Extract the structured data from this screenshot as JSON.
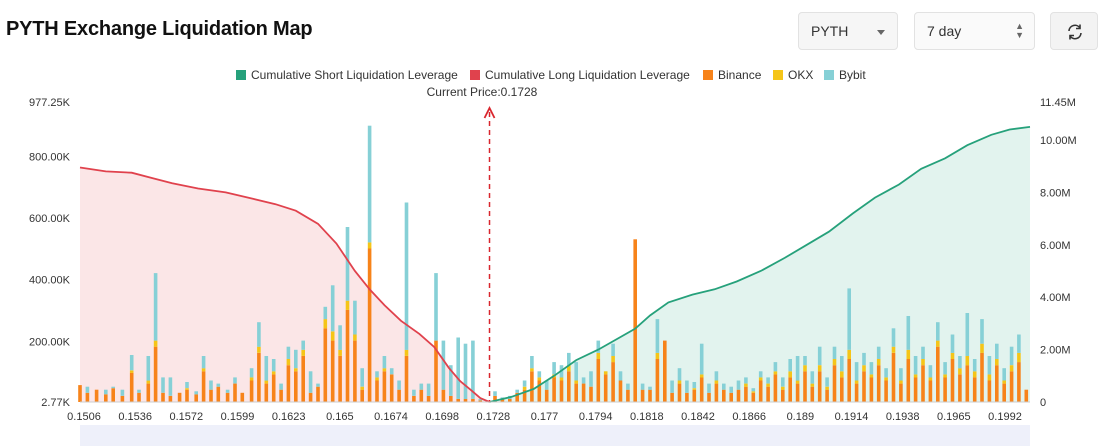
{
  "page": {
    "title": "PYTH Exchange Liquidation Map"
  },
  "controls": {
    "symbol": "PYTH",
    "range": "7 day"
  },
  "chart_data": {
    "type": "bar",
    "current_price_label": "Current Price:0.1728",
    "current_price": 0.1728,
    "legend": [
      {
        "name": "Cumulative Short Liquidation Leverage",
        "color": "#26a17b"
      },
      {
        "name": "Cumulative Long Liquidation Leverage",
        "color": "#e0424d"
      },
      {
        "name": "Binance",
        "color": "#f7831a"
      },
      {
        "name": "OKX",
        "color": "#f5c518"
      },
      {
        "name": "Bybit",
        "color": "#86d0d6"
      }
    ],
    "x_tick_labels": [
      "0.1506",
      "0.1536",
      "0.1572",
      "0.1599",
      "0.1623",
      "0.165",
      "0.1674",
      "0.1698",
      "0.1728",
      "0.177",
      "0.1794",
      "0.1818",
      "0.1842",
      "0.1866",
      "0.189",
      "0.1914",
      "0.1938",
      "0.1965",
      "0.1992"
    ],
    "y_left_ticks": [
      "977.25K",
      "800.00K",
      "600.00K",
      "400.00K",
      "200.00K",
      "2.77K"
    ],
    "y_left_values": [
      977250,
      800000,
      600000,
      400000,
      200000,
      2770
    ],
    "y_right_ticks": [
      "11.45M",
      "10.00M",
      "8.00M",
      "6.00M",
      "4.00M",
      "2.00M",
      "0"
    ],
    "y_right_values": [
      11450000,
      10000000,
      8000000,
      6000000,
      4000000,
      2000000,
      0
    ],
    "ylim_left": [
      2770,
      977250
    ],
    "ylim_right": [
      0,
      11450000
    ],
    "xlim": [
      0.1506,
      0.2021
    ],
    "bars": [
      {
        "x": 0.1506,
        "binance": 55000,
        "okx": 0,
        "bybit": 0
      },
      {
        "x": 0.151,
        "binance": 30000,
        "okx": 0,
        "bybit": 20000
      },
      {
        "x": 0.1515,
        "binance": 40000,
        "okx": 0,
        "bybit": 0
      },
      {
        "x": 0.152,
        "binance": 25000,
        "okx": 0,
        "bybit": 15000
      },
      {
        "x": 0.1524,
        "binance": 45000,
        "okx": 0,
        "bybit": 5000
      },
      {
        "x": 0.1529,
        "binance": 20000,
        "okx": 0,
        "bybit": 20000
      },
      {
        "x": 0.1534,
        "binance": 95000,
        "okx": 8000,
        "bybit": 50000
      },
      {
        "x": 0.1538,
        "binance": 30000,
        "okx": 0,
        "bybit": 10000
      },
      {
        "x": 0.1543,
        "binance": 60000,
        "okx": 10000,
        "bybit": 80000
      },
      {
        "x": 0.1547,
        "binance": 180000,
        "okx": 20000,
        "bybit": 220000
      },
      {
        "x": 0.1551,
        "binance": 30000,
        "okx": 0,
        "bybit": 50000
      },
      {
        "x": 0.1555,
        "binance": 20000,
        "okx": 0,
        "bybit": 60000
      },
      {
        "x": 0.156,
        "binance": 30000,
        "okx": 0,
        "bybit": 0
      },
      {
        "x": 0.1564,
        "binance": 40000,
        "okx": 5000,
        "bybit": 20000
      },
      {
        "x": 0.1569,
        "binance": 25000,
        "okx": 0,
        "bybit": 10000
      },
      {
        "x": 0.1573,
        "binance": 100000,
        "okx": 10000,
        "bybit": 40000
      },
      {
        "x": 0.1577,
        "binance": 40000,
        "okx": 0,
        "bybit": 30000
      },
      {
        "x": 0.1581,
        "binance": 50000,
        "okx": 0,
        "bybit": 10000
      },
      {
        "x": 0.1586,
        "binance": 30000,
        "okx": 0,
        "bybit": 10000
      },
      {
        "x": 0.159,
        "binance": 60000,
        "okx": 0,
        "bybit": 20000
      },
      {
        "x": 0.1594,
        "binance": 30000,
        "okx": 0,
        "bybit": 0
      },
      {
        "x": 0.1599,
        "binance": 70000,
        "okx": 10000,
        "bybit": 30000
      },
      {
        "x": 0.1603,
        "binance": 160000,
        "okx": 20000,
        "bybit": 80000
      },
      {
        "x": 0.1607,
        "binance": 60000,
        "okx": 10000,
        "bybit": 80000
      },
      {
        "x": 0.1611,
        "binance": 90000,
        "okx": 10000,
        "bybit": 40000
      },
      {
        "x": 0.1615,
        "binance": 40000,
        "okx": 0,
        "bybit": 20000
      },
      {
        "x": 0.1619,
        "binance": 120000,
        "okx": 20000,
        "bybit": 40000
      },
      {
        "x": 0.1623,
        "binance": 100000,
        "okx": 10000,
        "bybit": 60000
      },
      {
        "x": 0.1627,
        "binance": 150000,
        "okx": 20000,
        "bybit": 30000
      },
      {
        "x": 0.1631,
        "binance": 30000,
        "okx": 0,
        "bybit": 70000
      },
      {
        "x": 0.1635,
        "binance": 50000,
        "okx": 0,
        "bybit": 10000
      },
      {
        "x": 0.1639,
        "binance": 240000,
        "okx": 30000,
        "bybit": 40000
      },
      {
        "x": 0.1643,
        "binance": 200000,
        "okx": 30000,
        "bybit": 150000
      },
      {
        "x": 0.1647,
        "binance": 150000,
        "okx": 20000,
        "bybit": 80000
      },
      {
        "x": 0.1651,
        "binance": 300000,
        "okx": 30000,
        "bybit": 240000
      },
      {
        "x": 0.1655,
        "binance": 200000,
        "okx": 20000,
        "bybit": 110000
      },
      {
        "x": 0.1659,
        "binance": 40000,
        "okx": 10000,
        "bybit": 60000
      },
      {
        "x": 0.1663,
        "binance": 500000,
        "okx": 20000,
        "bybit": 380000
      },
      {
        "x": 0.1667,
        "binance": 70000,
        "okx": 10000,
        "bybit": 20000
      },
      {
        "x": 0.1671,
        "binance": 100000,
        "okx": 10000,
        "bybit": 40000
      },
      {
        "x": 0.1675,
        "binance": 90000,
        "okx": 0,
        "bybit": 20000
      },
      {
        "x": 0.1679,
        "binance": 40000,
        "okx": 0,
        "bybit": 30000
      },
      {
        "x": 0.1683,
        "binance": 150000,
        "okx": 20000,
        "bybit": 480000
      },
      {
        "x": 0.1687,
        "binance": 20000,
        "okx": 0,
        "bybit": 20000
      },
      {
        "x": 0.1691,
        "binance": 40000,
        "okx": 0,
        "bybit": 20000
      },
      {
        "x": 0.1695,
        "binance": 20000,
        "okx": 0,
        "bybit": 40000
      },
      {
        "x": 0.1699,
        "binance": 200000,
        "okx": 0,
        "bybit": 220000
      },
      {
        "x": 0.1703,
        "binance": 40000,
        "okx": 0,
        "bybit": 160000
      },
      {
        "x": 0.1707,
        "binance": 20000,
        "okx": 0,
        "bybit": 100000
      },
      {
        "x": 0.1711,
        "binance": 10000,
        "okx": 0,
        "bybit": 200000
      },
      {
        "x": 0.1715,
        "binance": 10000,
        "okx": 0,
        "bybit": 180000
      },
      {
        "x": 0.1719,
        "binance": 10000,
        "okx": 0,
        "bybit": 190000
      },
      {
        "x": 0.1723,
        "binance": 5000,
        "okx": 0,
        "bybit": 5000
      },
      {
        "x": 0.1731,
        "binance": 20000,
        "okx": 0,
        "bybit": 15000
      },
      {
        "x": 0.1735,
        "binance": 10000,
        "okx": 0,
        "bybit": 5000
      },
      {
        "x": 0.1739,
        "binance": 10000,
        "okx": 0,
        "bybit": 10000
      },
      {
        "x": 0.1743,
        "binance": 30000,
        "okx": 0,
        "bybit": 10000
      },
      {
        "x": 0.1747,
        "binance": 40000,
        "okx": 10000,
        "bybit": 20000
      },
      {
        "x": 0.1751,
        "binance": 100000,
        "okx": 10000,
        "bybit": 40000
      },
      {
        "x": 0.1755,
        "binance": 70000,
        "okx": 10000,
        "bybit": 20000
      },
      {
        "x": 0.1759,
        "binance": 40000,
        "okx": 0,
        "bybit": 30000
      },
      {
        "x": 0.1763,
        "binance": 80000,
        "okx": 10000,
        "bybit": 40000
      },
      {
        "x": 0.1767,
        "binance": 70000,
        "okx": 10000,
        "bybit": 40000
      },
      {
        "x": 0.1771,
        "binance": 100000,
        "okx": 20000,
        "bybit": 40000
      },
      {
        "x": 0.1775,
        "binance": 60000,
        "okx": 10000,
        "bybit": 60000
      },
      {
        "x": 0.1779,
        "binance": 60000,
        "okx": 0,
        "bybit": 20000
      },
      {
        "x": 0.1783,
        "binance": 50000,
        "okx": 0,
        "bybit": 50000
      },
      {
        "x": 0.1787,
        "binance": 140000,
        "okx": 20000,
        "bybit": 40000
      },
      {
        "x": 0.1791,
        "binance": 90000,
        "okx": 10000,
        "bybit": 0
      },
      {
        "x": 0.1795,
        "binance": 130000,
        "okx": 20000,
        "bybit": 40000
      },
      {
        "x": 0.1799,
        "binance": 70000,
        "okx": 0,
        "bybit": 30000
      },
      {
        "x": 0.1803,
        "binance": 40000,
        "okx": 0,
        "bybit": 20000
      },
      {
        "x": 0.1807,
        "binance": 530000,
        "okx": 0,
        "bybit": 0
      },
      {
        "x": 0.1811,
        "binance": 40000,
        "okx": 0,
        "bybit": 20000
      },
      {
        "x": 0.1815,
        "binance": 40000,
        "okx": 0,
        "bybit": 10000
      },
      {
        "x": 0.1819,
        "binance": 140000,
        "okx": 20000,
        "bybit": 110000
      },
      {
        "x": 0.1823,
        "binance": 200000,
        "okx": 0,
        "bybit": 0
      },
      {
        "x": 0.1827,
        "binance": 30000,
        "okx": 0,
        "bybit": 40000
      },
      {
        "x": 0.1831,
        "binance": 60000,
        "okx": 10000,
        "bybit": 40000
      },
      {
        "x": 0.1835,
        "binance": 30000,
        "okx": 0,
        "bybit": 40000
      },
      {
        "x": 0.1839,
        "binance": 40000,
        "okx": 5000,
        "bybit": 20000
      },
      {
        "x": 0.1843,
        "binance": 80000,
        "okx": 10000,
        "bybit": 100000
      },
      {
        "x": 0.1847,
        "binance": 30000,
        "okx": 0,
        "bybit": 30000
      },
      {
        "x": 0.1851,
        "binance": 60000,
        "okx": 10000,
        "bybit": 30000
      },
      {
        "x": 0.1855,
        "binance": 40000,
        "okx": 0,
        "bybit": 20000
      },
      {
        "x": 0.1859,
        "binance": 30000,
        "okx": 0,
        "bybit": 20000
      },
      {
        "x": 0.1863,
        "binance": 40000,
        "okx": 0,
        "bybit": 30000
      },
      {
        "x": 0.1867,
        "binance": 50000,
        "okx": 10000,
        "bybit": 20000
      },
      {
        "x": 0.1871,
        "binance": 30000,
        "okx": 5000,
        "bybit": 10000
      },
      {
        "x": 0.1875,
        "binance": 70000,
        "okx": 10000,
        "bybit": 20000
      },
      {
        "x": 0.1879,
        "binance": 50000,
        "okx": 10000,
        "bybit": 20000
      },
      {
        "x": 0.1883,
        "binance": 90000,
        "okx": 10000,
        "bybit": 30000
      },
      {
        "x": 0.1887,
        "binance": 40000,
        "okx": 10000,
        "bybit": 30000
      },
      {
        "x": 0.1891,
        "binance": 80000,
        "okx": 20000,
        "bybit": 40000
      },
      {
        "x": 0.1895,
        "binance": 60000,
        "okx": 10000,
        "bybit": 80000
      },
      {
        "x": 0.1899,
        "binance": 100000,
        "okx": 20000,
        "bybit": 30000
      },
      {
        "x": 0.1903,
        "binance": 50000,
        "okx": 10000,
        "bybit": 40000
      },
      {
        "x": 0.1907,
        "binance": 100000,
        "okx": 20000,
        "bybit": 60000
      },
      {
        "x": 0.1911,
        "binance": 40000,
        "okx": 10000,
        "bybit": 30000
      },
      {
        "x": 0.1915,
        "binance": 120000,
        "okx": 20000,
        "bybit": 40000
      },
      {
        "x": 0.1919,
        "binance": 80000,
        "okx": 20000,
        "bybit": 50000
      },
      {
        "x": 0.1923,
        "binance": 140000,
        "okx": 30000,
        "bybit": 200000
      },
      {
        "x": 0.1927,
        "binance": 60000,
        "okx": 10000,
        "bybit": 60000
      },
      {
        "x": 0.1931,
        "binance": 100000,
        "okx": 20000,
        "bybit": 40000
      },
      {
        "x": 0.1935,
        "binance": 80000,
        "okx": 10000,
        "bybit": 40000
      },
      {
        "x": 0.1939,
        "binance": 120000,
        "okx": 20000,
        "bybit": 40000
      },
      {
        "x": 0.1943,
        "binance": 70000,
        "okx": 10000,
        "bybit": 30000
      },
      {
        "x": 0.1947,
        "binance": 160000,
        "okx": 20000,
        "bybit": 60000
      },
      {
        "x": 0.1951,
        "binance": 60000,
        "okx": 10000,
        "bybit": 40000
      },
      {
        "x": 0.1955,
        "binance": 140000,
        "okx": 30000,
        "bybit": 110000
      },
      {
        "x": 0.1959,
        "binance": 80000,
        "okx": 10000,
        "bybit": 60000
      },
      {
        "x": 0.1963,
        "binance": 120000,
        "okx": 20000,
        "bybit": 40000
      },
      {
        "x": 0.1967,
        "binance": 70000,
        "okx": 10000,
        "bybit": 40000
      },
      {
        "x": 0.1971,
        "binance": 180000,
        "okx": 20000,
        "bybit": 60000
      },
      {
        "x": 0.1975,
        "binance": 80000,
        "okx": 10000,
        "bybit": 40000
      },
      {
        "x": 0.1979,
        "binance": 140000,
        "okx": 20000,
        "bybit": 60000
      },
      {
        "x": 0.1983,
        "binance": 90000,
        "okx": 20000,
        "bybit": 40000
      },
      {
        "x": 0.1987,
        "binance": 120000,
        "okx": 30000,
        "bybit": 140000
      },
      {
        "x": 0.1991,
        "binance": 80000,
        "okx": 20000,
        "bybit": 40000
      },
      {
        "x": 0.1995,
        "binance": 160000,
        "okx": 30000,
        "bybit": 80000
      },
      {
        "x": 0.1999,
        "binance": 70000,
        "okx": 20000,
        "bybit": 60000
      },
      {
        "x": 0.2003,
        "binance": 120000,
        "okx": 20000,
        "bybit": 50000
      },
      {
        "x": 0.2007,
        "binance": 60000,
        "okx": 10000,
        "bybit": 40000
      },
      {
        "x": 0.2011,
        "binance": 100000,
        "okx": 20000,
        "bybit": 60000
      },
      {
        "x": 0.2015,
        "binance": 130000,
        "okx": 30000,
        "bybit": 60000
      },
      {
        "x": 0.2019,
        "binance": 40000,
        "okx": 0,
        "bybit": 0
      }
    ],
    "long_cumulative": [
      [
        0.1506,
        8.95
      ],
      [
        0.152,
        8.8
      ],
      [
        0.1534,
        8.75
      ],
      [
        0.1545,
        8.55
      ],
      [
        0.1556,
        8.35
      ],
      [
        0.157,
        8.15
      ],
      [
        0.1585,
        8.0
      ],
      [
        0.16,
        7.75
      ],
      [
        0.1612,
        7.55
      ],
      [
        0.1623,
        7.3
      ],
      [
        0.1635,
        6.8
      ],
      [
        0.1645,
        6.05
      ],
      [
        0.1655,
        5.0
      ],
      [
        0.1663,
        4.3
      ],
      [
        0.1671,
        3.7
      ],
      [
        0.168,
        3.1
      ],
      [
        0.169,
        2.6
      ],
      [
        0.1698,
        2.1
      ],
      [
        0.1706,
        1.3
      ],
      [
        0.1712,
        0.8
      ],
      [
        0.1718,
        0.45
      ],
      [
        0.1723,
        0.15
      ],
      [
        0.1728,
        0.0
      ]
    ],
    "short_cumulative": [
      [
        0.1728,
        0.0
      ],
      [
        0.174,
        0.2
      ],
      [
        0.1752,
        0.5
      ],
      [
        0.1763,
        1.0
      ],
      [
        0.1775,
        1.6
      ],
      [
        0.1787,
        2.0
      ],
      [
        0.1797,
        2.4
      ],
      [
        0.1807,
        2.8
      ],
      [
        0.1815,
        3.3
      ],
      [
        0.1825,
        3.8
      ],
      [
        0.1838,
        4.1
      ],
      [
        0.185,
        4.3
      ],
      [
        0.1862,
        4.6
      ],
      [
        0.1875,
        5.0
      ],
      [
        0.1888,
        5.5
      ],
      [
        0.19,
        6.0
      ],
      [
        0.1912,
        6.5
      ],
      [
        0.1925,
        7.2
      ],
      [
        0.1937,
        7.8
      ],
      [
        0.195,
        8.3
      ],
      [
        0.1962,
        8.9
      ],
      [
        0.1975,
        9.3
      ],
      [
        0.1987,
        9.8
      ],
      [
        0.2,
        10.2
      ],
      [
        0.201,
        10.4
      ],
      [
        0.2021,
        10.5
      ]
    ],
    "cumulative_unit": "M"
  }
}
